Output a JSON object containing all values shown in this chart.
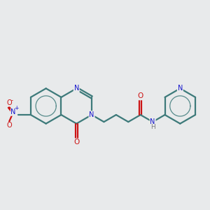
{
  "bg_color": "#e8eaeb",
  "bond_color": "#3d7a7a",
  "bond_width": 1.6,
  "atom_colors": {
    "N": "#1414cc",
    "O": "#cc1414",
    "H": "#7a7a7a",
    "C": "#3d7a7a"
  },
  "bg_color2": "#e8eaeb"
}
